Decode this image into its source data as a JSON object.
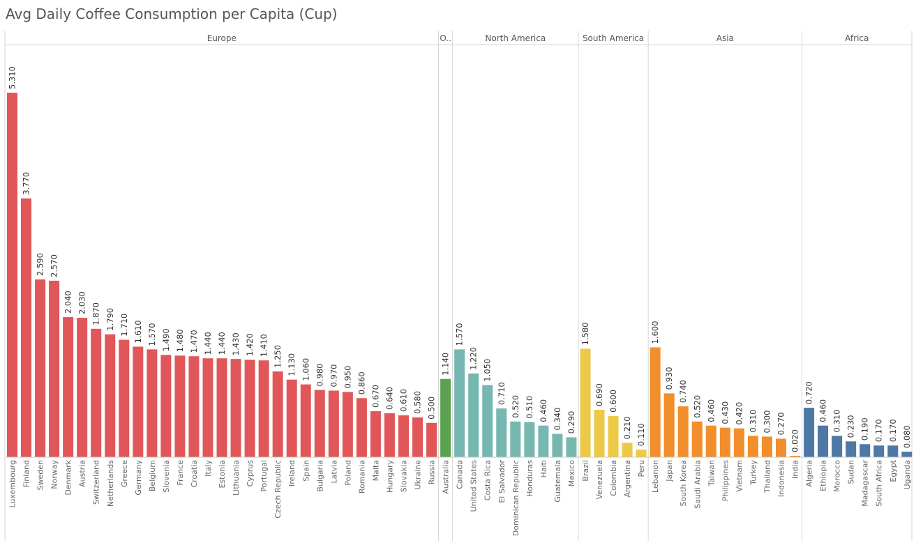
{
  "chart_data": {
    "type": "bar",
    "title": "Avg Daily Coffee Consumption per Capita (Cup)",
    "xlabel": "",
    "ylabel": "",
    "ylim": [
      0,
      5.8
    ],
    "grid": false,
    "groups": [
      {
        "name": "Europe",
        "header_label": "Europe",
        "color": "#e15759",
        "categories": [
          "Luxembourg",
          "Finland",
          "Sweden",
          "Norway",
          "Denmark",
          "Austria",
          "Switzerland",
          "Netherlands",
          "Greece",
          "Germany",
          "Belgium",
          "Slovenia",
          "France",
          "Croatia",
          "Italy",
          "Estonia",
          "Lithuania",
          "Cyprus",
          "Portugal",
          "Czech Republic",
          "Ireland",
          "Spain",
          "Bulgaria",
          "Latvia",
          "Poland",
          "Romania",
          "Malta",
          "Hungary",
          "Slovakia",
          "Ukraine",
          "Russia"
        ],
        "values": [
          5.31,
          3.77,
          2.59,
          2.57,
          2.04,
          2.03,
          1.87,
          1.79,
          1.71,
          1.61,
          1.57,
          1.49,
          1.48,
          1.47,
          1.44,
          1.44,
          1.43,
          1.42,
          1.41,
          1.25,
          1.13,
          1.06,
          0.98,
          0.97,
          0.95,
          0.86,
          0.67,
          0.64,
          0.61,
          0.58,
          0.5
        ],
        "labels": [
          "5.310",
          "3.770",
          "2.590",
          "2.570",
          "2.040",
          "2.030",
          "1.870",
          "1.790",
          "1.710",
          "1.610",
          "1.570",
          "1.490",
          "1.480",
          "1.470",
          "1.440",
          "1.440",
          "1.430",
          "1.420",
          "1.410",
          "1.250",
          "1.130",
          "1.060",
          "0.980",
          "0.970",
          "0.950",
          "0.860",
          "0.670",
          "0.640",
          "0.610",
          "0.580",
          "0.500"
        ]
      },
      {
        "name": "Oceania",
        "header_label": "O..",
        "color": "#59a14f",
        "categories": [
          "Australia"
        ],
        "values": [
          1.14
        ],
        "labels": [
          "1.140"
        ]
      },
      {
        "name": "North America",
        "header_label": "North America",
        "color": "#76b7b2",
        "categories": [
          "Canada",
          "United States",
          "Costa Rica",
          "El Salvador",
          "Dominican Republic",
          "Honduras",
          "Haiti",
          "Guatemala",
          "Mexico"
        ],
        "values": [
          1.57,
          1.22,
          1.05,
          0.71,
          0.52,
          0.51,
          0.46,
          0.34,
          0.29
        ],
        "labels": [
          "1.570",
          "1.220",
          "1.050",
          "0.710",
          "0.520",
          "0.510",
          "0.460",
          "0.340",
          "0.290"
        ]
      },
      {
        "name": "South America",
        "header_label": "South America",
        "color": "#edc948",
        "categories": [
          "Brazil",
          "Venezuela",
          "Colombia",
          "Argentina",
          "Peru"
        ],
        "values": [
          1.58,
          0.69,
          0.6,
          0.21,
          0.11
        ],
        "labels": [
          "1.580",
          "0.690",
          "0.600",
          "0.210",
          "0.110"
        ]
      },
      {
        "name": "Asia",
        "header_label": "Asia",
        "color": "#f28e2b",
        "categories": [
          "Lebanon",
          "Japan",
          "South Korea",
          "Saudi Arabia",
          "Taiwan",
          "Philippines",
          "Vietnam",
          "Turkey",
          "Thailand",
          "Indonesia",
          "India"
        ],
        "values": [
          1.6,
          0.93,
          0.74,
          0.52,
          0.46,
          0.43,
          0.42,
          0.31,
          0.3,
          0.27,
          0.02
        ],
        "labels": [
          "1.600",
          "0.930",
          "0.740",
          "0.520",
          "0.460",
          "0.430",
          "0.420",
          "0.310",
          "0.300",
          "0.270",
          "0.020"
        ]
      },
      {
        "name": "Africa",
        "header_label": "Africa",
        "color": "#4e79a7",
        "categories": [
          "Algeria",
          "Ethiopia",
          "Morocco",
          "Sudan",
          "Madagascar",
          "South Africa",
          "Egypt",
          "Uganda"
        ],
        "values": [
          0.72,
          0.46,
          0.31,
          0.23,
          0.19,
          0.17,
          0.17,
          0.08
        ],
        "labels": [
          "0.720",
          "0.460",
          "0.310",
          "0.230",
          "0.190",
          "0.170",
          "0.170",
          "0.080"
        ]
      }
    ]
  }
}
